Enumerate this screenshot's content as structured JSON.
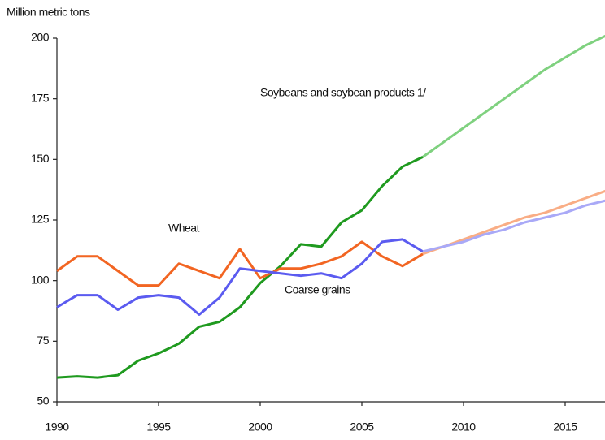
{
  "chart_data": {
    "type": "line",
    "y_axis_label": "Million metric tons",
    "xlim": [
      1990,
      2017
    ],
    "xticks": [
      1990,
      1995,
      2000,
      2005,
      2010,
      2015
    ],
    "ylim": [
      50,
      200
    ],
    "yticks": [
      50,
      75,
      100,
      125,
      150,
      175,
      200
    ],
    "grid": false,
    "series": [
      {
        "name": "Soybeans and soybean products 1/",
        "color": "#1f9a1f",
        "x": [
          1990,
          1991,
          1992,
          1993,
          1994,
          1995,
          1996,
          1997,
          1998,
          1999,
          2000,
          2001,
          2002,
          2003,
          2004,
          2005,
          2006,
          2007,
          2008
        ],
        "values": [
          60,
          60.5,
          60,
          61,
          67,
          70,
          74,
          81,
          83,
          89,
          99,
          106,
          115,
          114,
          124,
          129,
          139,
          147,
          151
        ]
      },
      {
        "name": "Wheat",
        "color": "#f26522",
        "x": [
          1990,
          1991,
          1992,
          1993,
          1994,
          1995,
          1996,
          1997,
          1998,
          1999,
          2000,
          2001,
          2002,
          2003,
          2004,
          2005,
          2006,
          2007,
          2008
        ],
        "values": [
          104,
          110,
          110,
          104,
          98,
          98,
          107,
          104,
          101,
          113,
          101,
          105,
          105,
          107,
          110,
          116,
          110,
          106,
          111
        ]
      },
      {
        "name": "Coarse grains",
        "color": "#5b5bf0",
        "x": [
          1990,
          1991,
          1992,
          1993,
          1994,
          1995,
          1996,
          1997,
          1998,
          1999,
          2000,
          2001,
          2002,
          2003,
          2004,
          2005,
          2006,
          2007,
          2008
        ],
        "values": [
          89,
          94,
          94,
          88,
          93,
          94,
          93,
          86,
          93,
          105,
          104,
          103,
          102,
          103,
          101,
          107,
          116,
          117,
          112
        ]
      },
      {
        "color": "#7fd17f",
        "x": [
          2008,
          2009,
          2010,
          2011,
          2012,
          2013,
          2014,
          2015,
          2016,
          2017
        ],
        "values": [
          151,
          157,
          163,
          169,
          175,
          181,
          187,
          192,
          197,
          201
        ]
      },
      {
        "color": "#f9ad85",
        "x": [
          2008,
          2009,
          2010,
          2011,
          2012,
          2013,
          2014,
          2015,
          2016,
          2017
        ],
        "values": [
          111,
          114,
          117,
          120,
          123,
          126,
          128,
          131,
          134,
          137
        ]
      },
      {
        "color": "#a9a9f7",
        "x": [
          2008,
          2009,
          2010,
          2011,
          2012,
          2013,
          2014,
          2015,
          2016,
          2017
        ],
        "values": [
          112,
          114,
          116,
          119,
          121,
          124,
          126,
          128,
          131,
          133
        ]
      }
    ]
  }
}
